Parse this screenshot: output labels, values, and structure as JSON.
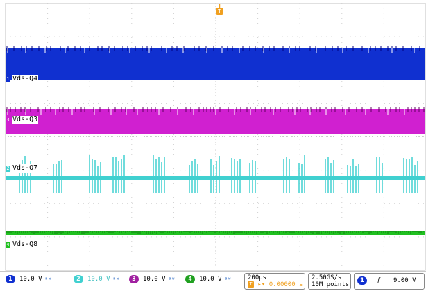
{
  "scope": {
    "channels": [
      {
        "id": "1",
        "label": "Vds-Q4",
        "color": "#1030d0",
        "scale": "10.0 V"
      },
      {
        "id": "2",
        "label": "Vds-Q7",
        "color": "#40d0d0",
        "scale": "10.0 V"
      },
      {
        "id": "3",
        "label": "Vds-Q3",
        "color": "#d020d0",
        "scale": "10.0 V"
      },
      {
        "id": "4",
        "label": "Vds-Q8",
        "color": "#20c020",
        "scale": "10.0 V"
      }
    ],
    "horizontal": {
      "timebase": "200µs",
      "trigger_pos": "0.00000 s"
    },
    "acquisition": {
      "sample_rate": "2.50GS/s",
      "record_length": "10M points"
    },
    "trigger": {
      "source": "1",
      "slope": "rising-edge-icon",
      "slope_glyph": "ƒ",
      "level": "9.00 V"
    },
    "bw_symbol": "ᴮᵂ",
    "trigger_marker": "T",
    "colors": {
      "grid": "#c0c0c0",
      "background": "#ffffff",
      "trigger": "#f0a020"
    }
  }
}
